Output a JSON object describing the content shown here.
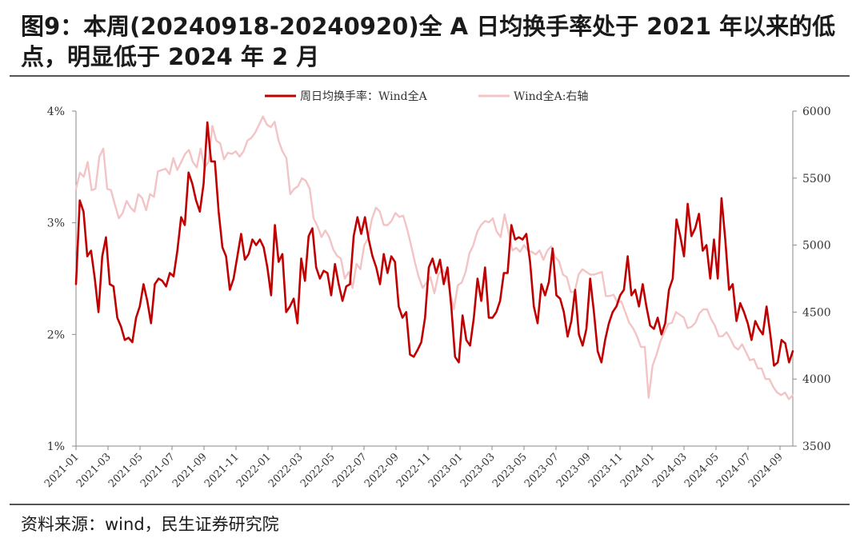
{
  "header": {
    "title": "图9：本周(20240918-20240920)全 A 日均换手率处于 2021 年以来的低点，明显低于 2024 年 2 月"
  },
  "footer": {
    "source": "资料来源：wind，民生证券研究院"
  },
  "colors": {
    "turnover": "#c00000",
    "index": "#f2c4c6"
  },
  "chart_data": {
    "type": "line",
    "title": "",
    "xlabel": "",
    "ylabel": "",
    "legend_position": "top-center",
    "grid": false,
    "x_ticks": [
      "2021-01",
      "2021-03",
      "2021-05",
      "2021-07",
      "2021-09",
      "2021-11",
      "2022-01",
      "2022-03",
      "2022-05",
      "2022-07",
      "2022-09",
      "2022-11",
      "2023-01",
      "2023-03",
      "2023-05",
      "2023-07",
      "2023-09",
      "2023-11",
      "2024-01",
      "2024-03",
      "2024-05",
      "2024-07",
      "2024-09"
    ],
    "y_left": {
      "range": [
        1,
        4
      ],
      "ticks": [
        "1%",
        "2%",
        "3%",
        "4%"
      ],
      "unit": "%"
    },
    "y_right": {
      "range": [
        3500,
        6000
      ],
      "ticks": [
        "3500",
        "4000",
        "4500",
        "5000",
        "5500",
        "6000"
      ]
    },
    "series": [
      {
        "name": "周日均换手率：Wind全A",
        "axis": "left",
        "color": "#c00000",
        "values": [
          2.45,
          3.2,
          3.1,
          2.7,
          2.75,
          2.5,
          2.2,
          2.7,
          2.87,
          2.45,
          2.43,
          2.15,
          2.07,
          1.95,
          1.97,
          1.93,
          2.15,
          2.25,
          2.45,
          2.3,
          2.1,
          2.45,
          2.5,
          2.48,
          2.43,
          2.55,
          2.52,
          2.75,
          3.05,
          2.98,
          3.45,
          3.35,
          3.2,
          3.1,
          3.35,
          3.9,
          3.55,
          3.55,
          3.1,
          2.78,
          2.7,
          2.4,
          2.5,
          2.7,
          2.9,
          2.67,
          2.72,
          2.85,
          2.8,
          2.85,
          2.78,
          2.6,
          2.35,
          2.98,
          2.65,
          2.72,
          2.2,
          2.25,
          2.32,
          2.1,
          2.68,
          2.48,
          2.88,
          2.95,
          2.6,
          2.5,
          2.57,
          2.55,
          2.35,
          2.63,
          2.45,
          2.3,
          2.43,
          2.45,
          2.88,
          3.05,
          2.9,
          3.05,
          2.85,
          2.7,
          2.6,
          2.45,
          2.72,
          2.55,
          2.7,
          2.65,
          2.25,
          2.15,
          2.2,
          1.82,
          1.8,
          1.86,
          1.93,
          2.15,
          2.6,
          2.68,
          2.55,
          2.67,
          2.45,
          2.6,
          2.25,
          1.8,
          1.75,
          2.17,
          1.95,
          1.9,
          2.15,
          2.5,
          2.3,
          2.6,
          2.15,
          2.15,
          2.2,
          2.3,
          2.55,
          2.55,
          2.98,
          2.85,
          2.87,
          2.85,
          2.9,
          2.65,
          2.25,
          2.1,
          2.45,
          2.35,
          2.47,
          2.77,
          2.35,
          2.32,
          2.2,
          1.98,
          2.12,
          2.4,
          2.0,
          1.9,
          2.05,
          2.5,
          2.2,
          1.85,
          1.75,
          1.95,
          2.1,
          2.2,
          2.25,
          2.35,
          2.4,
          2.7,
          2.35,
          2.4,
          2.25,
          2.45,
          2.25,
          2.08,
          2.05,
          2.15,
          2.0,
          2.1,
          2.4,
          2.5,
          3.03,
          2.88,
          2.7,
          3.17,
          2.88,
          2.95,
          3.08,
          2.75,
          2.8,
          2.5,
          2.85,
          2.5,
          3.22,
          2.85,
          2.4,
          2.45,
          2.12,
          2.28,
          2.2,
          2.1,
          1.95,
          2.12,
          2.05,
          2.0,
          2.25,
          2.0,
          1.72,
          1.75,
          1.95,
          1.92,
          1.75,
          1.85
        ]
      },
      {
        "name": "Wind全A:右轴",
        "axis": "right",
        "color": "#f2c4c6",
        "values": [
          5420,
          5540,
          5510,
          5620,
          5410,
          5420,
          5660,
          5720,
          5420,
          5410,
          5300,
          5200,
          5240,
          5330,
          5280,
          5250,
          5380,
          5350,
          5260,
          5380,
          5360,
          5550,
          5560,
          5570,
          5530,
          5650,
          5560,
          5620,
          5680,
          5710,
          5620,
          5580,
          5720,
          5580,
          5620,
          5890,
          5780,
          5760,
          5640,
          5690,
          5680,
          5700,
          5660,
          5700,
          5780,
          5800,
          5840,
          5900,
          5960,
          5900,
          5880,
          5920,
          5780,
          5700,
          5650,
          5380,
          5420,
          5440,
          5500,
          5480,
          5420,
          5200,
          5140,
          5060,
          5110,
          5060,
          4970,
          4920,
          4900,
          4750,
          4800,
          4680,
          4860,
          4820,
          5000,
          5050,
          5200,
          5280,
          5250,
          5150,
          5150,
          5180,
          5240,
          5210,
          5220,
          5120,
          5000,
          4870,
          4760,
          4680,
          4720,
          4760,
          4640,
          4780,
          4820,
          4780,
          4650,
          4520,
          4700,
          4720,
          4800,
          4940,
          5000,
          5100,
          5150,
          5180,
          5170,
          5200,
          5100,
          5060,
          5230,
          5100,
          4960,
          4980,
          4950,
          5000,
          4960,
          4950,
          4930,
          4960,
          4890,
          4960,
          4990,
          4910,
          4880,
          4780,
          4760,
          4650,
          4650,
          4780,
          4820,
          4800,
          4780,
          4780,
          4790,
          4800,
          4620,
          4620,
          4630,
          4570,
          4580,
          4500,
          4420,
          4380,
          4320,
          4240,
          4240,
          3860,
          4100,
          4180,
          4280,
          4350,
          4410,
          4420,
          4500,
          4480,
          4460,
          4380,
          4390,
          4420,
          4490,
          4520,
          4520,
          4450,
          4400,
          4320,
          4320,
          4350,
          4300,
          4240,
          4220,
          4260,
          4200,
          4140,
          4150,
          4080,
          4080,
          4000,
          4000,
          3940,
          3900,
          3880,
          3900,
          3850,
          3880
        ]
      }
    ]
  }
}
